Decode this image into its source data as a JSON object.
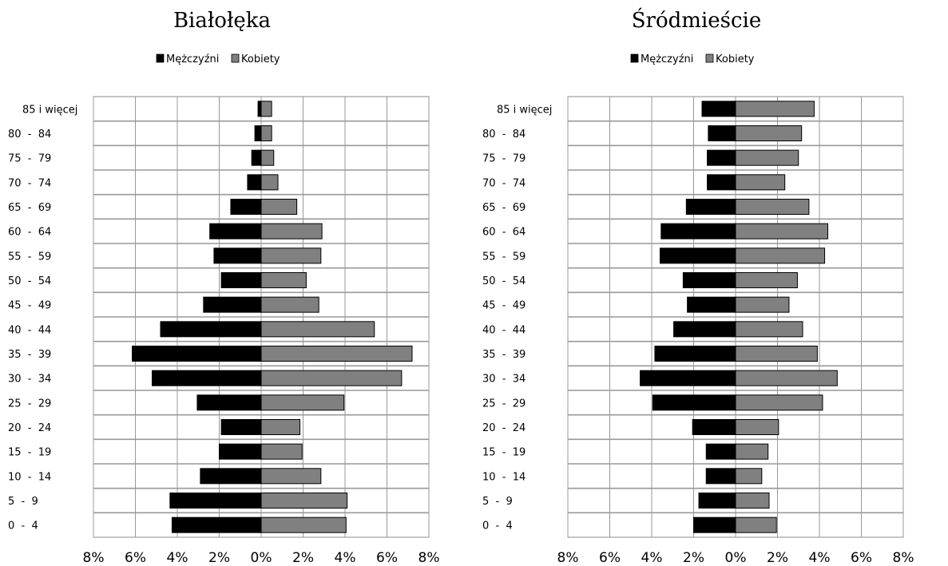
{
  "chart_data": [
    {
      "type": "bar",
      "orientation": "horizontal",
      "title": "Białołęka",
      "categories": [
        "85 i więcej",
        "80  -  84",
        "75  -  79",
        "70  -  74",
        "65  -  69",
        "60  -  64",
        "55  -  59",
        "50  -  54",
        "45  -  49",
        "40  -  44",
        "35  -  39",
        "30  -  34",
        "25  -  29",
        "20  -  24",
        "15  -  19",
        "10  -  14",
        "5  -  9",
        "0  -  4"
      ],
      "series": [
        {
          "name": "Mężczyźni",
          "color": "#000000",
          "values": [
            0.15,
            0.3,
            0.45,
            0.65,
            1.45,
            2.45,
            2.25,
            1.9,
            2.75,
            4.8,
            6.15,
            5.2,
            3.05,
            1.9,
            2.0,
            2.9,
            4.35,
            4.25
          ]
        },
        {
          "name": "Kobiety",
          "color": "#808080",
          "values": [
            0.5,
            0.5,
            0.6,
            0.8,
            1.7,
            2.9,
            2.85,
            2.15,
            2.75,
            5.4,
            7.2,
            6.7,
            3.95,
            1.85,
            1.95,
            2.85,
            4.1,
            4.05
          ]
        }
      ],
      "xlim": [
        -8,
        8
      ],
      "x_ticks": [
        "8%",
        "6%",
        "4%",
        "2%",
        "0%",
        "2%",
        "4%",
        "6%",
        "8%"
      ],
      "grid": true,
      "legend": "top-center"
    },
    {
      "type": "bar",
      "orientation": "horizontal",
      "title": "Śródmieście",
      "categories": [
        "85 i więcej",
        "80  -  84",
        "75  -  79",
        "70  -  74",
        "65  -  69",
        "60  -  64",
        "55  -  59",
        "50  -  54",
        "45  -  49",
        "40  -  44",
        "35  -  39",
        "30  -  34",
        "25  -  29",
        "20  -  24",
        "15  -  19",
        "10  -  14",
        "5  -  9",
        "0  -  4"
      ],
      "series": [
        {
          "name": "Mężczyźni",
          "color": "#000000",
          "values": [
            1.6,
            1.3,
            1.35,
            1.35,
            2.35,
            3.55,
            3.6,
            2.5,
            2.3,
            2.95,
            3.85,
            4.55,
            3.95,
            2.05,
            1.4,
            1.4,
            1.75,
            2.0
          ]
        },
        {
          "name": "Kobiety",
          "color": "#808080",
          "values": [
            3.75,
            3.15,
            3.0,
            2.35,
            3.5,
            4.4,
            4.25,
            2.95,
            2.55,
            3.2,
            3.9,
            4.85,
            4.15,
            2.05,
            1.55,
            1.25,
            1.6,
            1.95
          ]
        }
      ],
      "xlim": [
        -8,
        8
      ],
      "x_ticks": [
        "8%",
        "6%",
        "4%",
        "2%",
        "0%",
        "2%",
        "4%",
        "6%",
        "8%"
      ],
      "grid": true,
      "legend": "top-center"
    }
  ]
}
